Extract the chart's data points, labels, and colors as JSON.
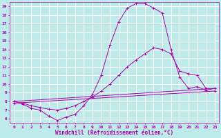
{
  "xlabel": "Windchill (Refroidissement éolien,°C)",
  "xlim": [
    -0.5,
    23.5
  ],
  "ylim": [
    5.5,
    19.5
  ],
  "yticks": [
    6,
    7,
    8,
    9,
    10,
    11,
    12,
    13,
    14,
    15,
    16,
    17,
    18,
    19
  ],
  "xticks": [
    0,
    1,
    2,
    3,
    4,
    5,
    6,
    7,
    8,
    9,
    10,
    11,
    12,
    13,
    14,
    15,
    16,
    17,
    18,
    19,
    20,
    21,
    22,
    23
  ],
  "bg_color": "#beeaea",
  "grid_color": "#ffffff",
  "line_color": "#aa00aa",
  "lines": [
    {
      "x": [
        0,
        1,
        2,
        3,
        4,
        5,
        6,
        7,
        8,
        9,
        10,
        11,
        12,
        13,
        14,
        15,
        16,
        17,
        18,
        19,
        20,
        21,
        22,
        23
      ],
      "y": [
        8.0,
        7.7,
        7.2,
        7.0,
        6.3,
        5.8,
        6.2,
        6.5,
        7.5,
        8.8,
        11.0,
        14.5,
        17.2,
        18.8,
        19.3,
        19.3,
        18.8,
        18.2,
        14.0,
        10.8,
        9.5,
        9.7,
        9.3,
        9.5
      ]
    },
    {
      "x": [
        0,
        1,
        2,
        3,
        4,
        5,
        6,
        7,
        8,
        9,
        10,
        11,
        12,
        13,
        14,
        15,
        16,
        17,
        18,
        19,
        20,
        21,
        22,
        23
      ],
      "y": [
        8.0,
        7.8,
        7.5,
        7.3,
        7.1,
        7.0,
        7.2,
        7.5,
        8.0,
        8.5,
        9.2,
        10.0,
        11.0,
        12.0,
        12.8,
        13.5,
        14.2,
        14.0,
        13.5,
        11.5,
        11.2,
        11.0,
        9.5,
        9.5
      ]
    },
    {
      "x": [
        0,
        23
      ],
      "y": [
        8.0,
        9.5
      ]
    },
    {
      "x": [
        0,
        23
      ],
      "y": [
        7.8,
        9.2
      ]
    }
  ]
}
